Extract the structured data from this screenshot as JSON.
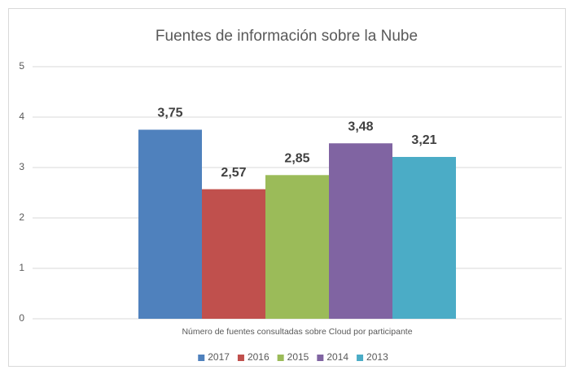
{
  "chart_data": {
    "type": "bar",
    "title": "Fuentes de información sobre la Nube",
    "categories": [
      "Número de fuentes consultadas sobre Cloud por participante"
    ],
    "series": [
      {
        "name": "2017",
        "color": "#4f81bd",
        "values": [
          3.75
        ],
        "value_labels": [
          "3,75"
        ]
      },
      {
        "name": "2016",
        "color": "#c0504d",
        "values": [
          2.57
        ],
        "value_labels": [
          "2,57"
        ]
      },
      {
        "name": "2015",
        "color": "#9bbb59",
        "values": [
          2.85
        ],
        "value_labels": [
          "2,85"
        ]
      },
      {
        "name": "2014",
        "color": "#8064a2",
        "values": [
          3.48
        ],
        "value_labels": [
          "3,48"
        ]
      },
      {
        "name": "2013",
        "color": "#4bacc6",
        "values": [
          3.21
        ],
        "value_labels": [
          "3,21"
        ]
      }
    ],
    "ylim": [
      0,
      5
    ],
    "yticks": [
      0,
      1,
      2,
      3,
      4,
      5
    ],
    "grid": true,
    "legend": "bottom"
  }
}
